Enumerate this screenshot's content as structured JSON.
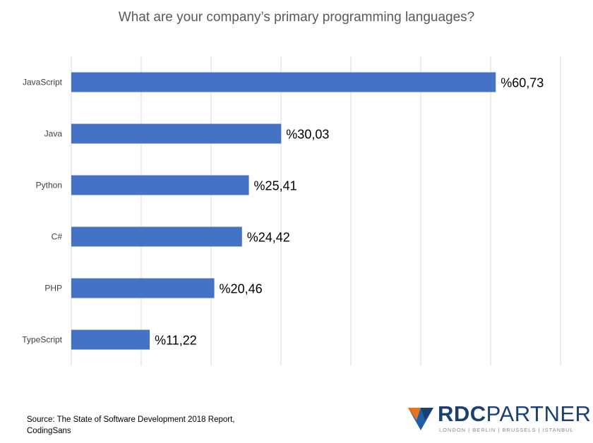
{
  "chart_data": {
    "type": "bar",
    "orientation": "horizontal",
    "title": "What are your company’s primary programming languages?",
    "categories": [
      "JavaScript",
      "Java",
      "Python",
      "C#",
      "PHP",
      "TypeScript"
    ],
    "values": [
      60.73,
      30.03,
      25.41,
      24.42,
      20.46,
      11.22
    ],
    "data_labels": [
      "%60,73",
      "%30,03",
      "%25,41",
      "%24,42",
      "%20,46",
      "%11,22"
    ],
    "xlim": [
      0,
      70
    ],
    "grid": true,
    "bar_color": "#4472c4"
  },
  "footer": {
    "source_line1": "Source: The State of Software Development 2018 Report,",
    "source_line2": "CodingSans"
  },
  "logo": {
    "brand_bold": "RDC",
    "brand_regular": "PARTNER",
    "tagline": "LONDON | BERLIN | BRUSSELS | ISTANBUL",
    "colors": {
      "navy": "#1b3f70",
      "orange": "#e8731e",
      "blue": "#1f5fa8"
    }
  }
}
